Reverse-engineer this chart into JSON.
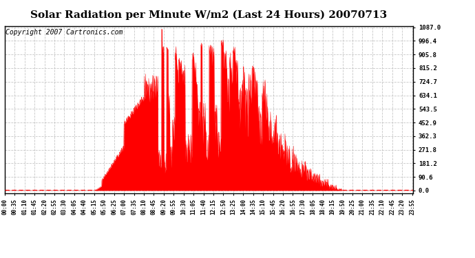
{
  "title": "Solar Radiation per Minute W/m2 (Last 24 Hours) 20070713",
  "copyright": "Copyright 2007 Cartronics.com",
  "yticks": [
    0.0,
    90.6,
    181.2,
    271.8,
    362.3,
    452.9,
    543.5,
    634.1,
    724.7,
    815.2,
    905.8,
    996.4,
    1087.0
  ],
  "ymax": 1087.0,
  "ymin": 0.0,
  "fill_color": "#FF0000",
  "line_color": "#FF0000",
  "bg_color": "#FFFFFF",
  "grid_color": "#C0C0C0",
  "dashed_line_color": "#FF0000",
  "title_fontsize": 11,
  "copyright_fontsize": 7,
  "tick_interval_minutes": 35
}
